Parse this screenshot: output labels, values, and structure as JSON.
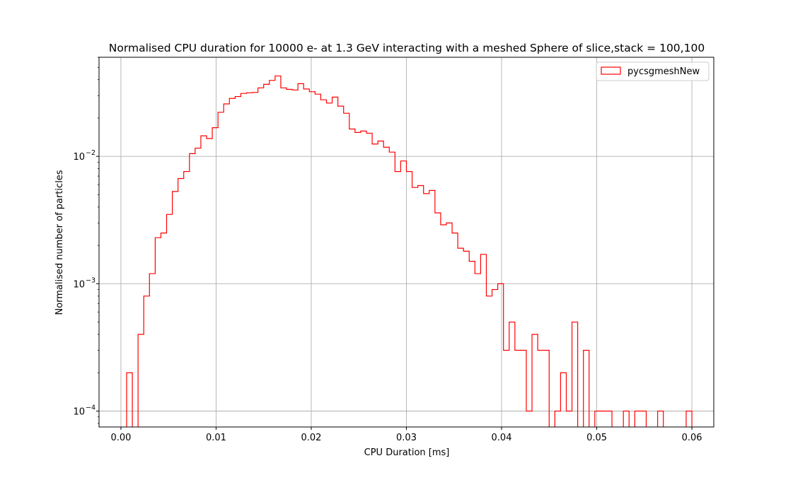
{
  "chart_data": {
    "type": "histogram",
    "title": "Normalised CPU duration for 10000 e- at 1.3 GeV interacting with a meshed Sphere of slice,stack = 100,100",
    "xlabel": "CPU Duration [ms]",
    "ylabel": "Normalised number of particles",
    "y_scale": "log",
    "xlim": [
      -0.0023,
      0.0623
    ],
    "ylim": [
      7.5e-05,
      0.06
    ],
    "grid": true,
    "legend_position": "top-right",
    "series_color": "#ff0000",
    "x_ticks": [
      0.0,
      0.01,
      0.02,
      0.03,
      0.04,
      0.05,
      0.06
    ],
    "x_tick_labels": [
      "0.00",
      "0.01",
      "0.02",
      "0.03",
      "0.04",
      "0.05",
      "0.06"
    ],
    "y_ticks": [
      0.0001,
      0.001,
      0.01
    ],
    "y_tick_labels": [
      "10",
      "10",
      "10"
    ],
    "y_tick_exponents": [
      "−4",
      "−3",
      "−2"
    ],
    "bin_start": 0.0,
    "bin_width": 0.0006,
    "series": [
      {
        "name": "pycsgmeshNew",
        "values": [
          0,
          0.0002,
          0,
          0.0004,
          0.0008,
          0.0012,
          0.0023,
          0.0025,
          0.0035,
          0.0053,
          0.0067,
          0.0076,
          0.0105,
          0.0116,
          0.0145,
          0.0138,
          0.0168,
          0.0222,
          0.0258,
          0.0285,
          0.0295,
          0.0312,
          0.0316,
          0.0318,
          0.0345,
          0.0368,
          0.0395,
          0.0428,
          0.0345,
          0.0336,
          0.0332,
          0.0372,
          0.0338,
          0.0322,
          0.0308,
          0.0278,
          0.0262,
          0.0292,
          0.0248,
          0.0218,
          0.0164,
          0.0154,
          0.0158,
          0.0152,
          0.0125,
          0.0132,
          0.0118,
          0.0108,
          0.0076,
          0.0092,
          0.0076,
          0.0057,
          0.0059,
          0.0051,
          0.0054,
          0.0036,
          0.0029,
          0.003,
          0.0025,
          0.0019,
          0.0018,
          0.0015,
          0.0012,
          0.0017,
          0.0008,
          0.0009,
          0.001,
          0.0003,
          0.0005,
          0.0003,
          0.0003,
          0.0001,
          0.0004,
          0.0003,
          0.0003,
          0,
          0.0001,
          0.0002,
          0.0001,
          0.0005,
          0,
          0.0003,
          0,
          0.0001,
          0.0001,
          0.0001,
          0,
          0,
          0.0001,
          0,
          0.0001,
          0.0001,
          0,
          0,
          0.0001,
          0,
          0,
          0,
          0,
          0.0001
        ]
      }
    ]
  }
}
